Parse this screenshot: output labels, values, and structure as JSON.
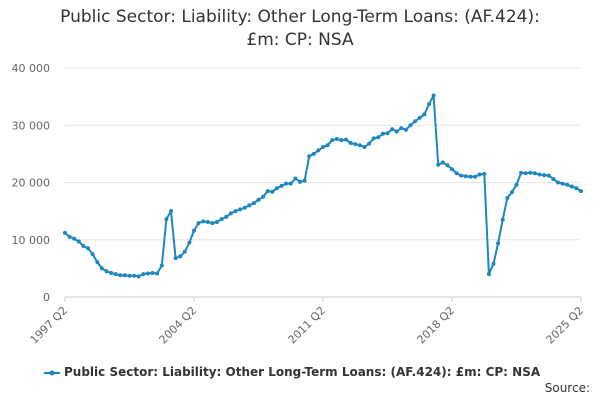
{
  "chart_data": {
    "type": "line",
    "title_line1": "Public Sector: Liability: Other Long-Term Loans: (AF.424):",
    "title_line2": "£m: CP: NSA",
    "ylim": [
      0,
      40000
    ],
    "yticks": [
      0,
      10000,
      20000,
      30000,
      40000
    ],
    "ytick_labels": [
      "0",
      "10 000",
      "20 000",
      "30 000",
      "40 000"
    ],
    "xticks": [
      "1997 Q2",
      "2004 Q2",
      "2011 Q2",
      "2018 Q2",
      "2025 Q2"
    ],
    "grid": true,
    "legend_position": "bottom",
    "series_color": "#1f86c0",
    "source_label": "Source:",
    "series": [
      {
        "name": "Public Sector: Liability: Other Long-Term Loans: (AF.424): £m: CP: NSA",
        "start_year": 1997,
        "start_quarter": 2,
        "values": [
          11200,
          10500,
          10200,
          9700,
          8900,
          8500,
          7500,
          6100,
          5000,
          4500,
          4200,
          4000,
          3800,
          3800,
          3700,
          3700,
          3600,
          4000,
          4100,
          4200,
          4100,
          5500,
          13600,
          15000,
          6800,
          7100,
          7900,
          9500,
          11600,
          12900,
          13200,
          13100,
          12900,
          13100,
          13600,
          14000,
          14600,
          15000,
          15300,
          15600,
          16000,
          16400,
          17000,
          17500,
          18500,
          18400,
          19000,
          19400,
          19800,
          19800,
          20700,
          20100,
          20300,
          24600,
          25000,
          25600,
          26200,
          26500,
          27400,
          27600,
          27400,
          27500,
          26900,
          26700,
          26500,
          26200,
          26800,
          27700,
          27900,
          28500,
          28600,
          29300,
          28900,
          29500,
          29200,
          30000,
          30700,
          31300,
          31900,
          33700,
          35200,
          23100,
          23500,
          23000,
          22300,
          21600,
          21200,
          21100,
          21000,
          21000,
          21400,
          21500,
          4000,
          5800,
          9400,
          13500,
          17300,
          18300,
          19600,
          21700,
          21600,
          21700,
          21600,
          21400,
          21300,
          21200,
          20600,
          20000,
          19800,
          19600,
          19300,
          19000,
          18500
        ]
      }
    ]
  }
}
